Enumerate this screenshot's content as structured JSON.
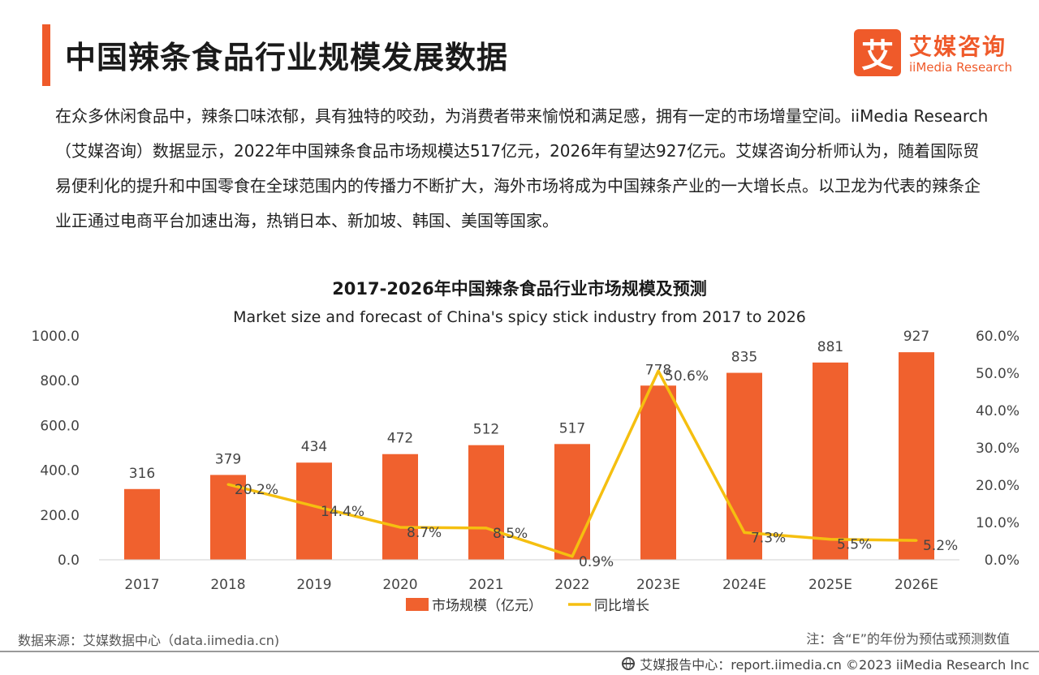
{
  "header": {
    "title": "中国辣条食品行业规模发展数据",
    "logo_mark": "艾",
    "logo_cn": "艾媒咨询",
    "logo_en": "iiMedia Research"
  },
  "intro": "在众多休闲食品中，辣条口味浓郁，具有独特的咬劲，为消费者带来愉悦和满足感，拥有一定的市场增量空间。iiMedia Research（艾媒咨询）数据显示，2022年中国辣条食品市场规模达517亿元，2026年有望达927亿元。艾媒咨询分析师认为，随着国际贸易便利化的提升和中国零食在全球范围内的传播力不断扩大，海外市场将成为中国辣条产业的一大增长点。以卫龙为代表的辣条企业正通过电商平台加速出海，热销日本、新加坡、韩国、美国等国家。",
  "chart_data": {
    "type": "bar",
    "title": "2017-2026年中国辣条食品行业市场规模及预测",
    "subtitle": "Market size and forecast of China's spicy stick industry from 2017 to 2026",
    "categories": [
      "2017",
      "2018",
      "2019",
      "2020",
      "2021",
      "2022",
      "2023E",
      "2024E",
      "2025E",
      "2026E"
    ],
    "series": [
      {
        "name": "市场规模（亿元）",
        "type": "bar",
        "axis": "left",
        "values": [
          316,
          379,
          434,
          472,
          512,
          517,
          778,
          835,
          881,
          927
        ],
        "labels": [
          "316",
          "379",
          "434",
          "472",
          "512",
          "517",
          "778",
          "835",
          "881",
          "927"
        ],
        "color": "#f0612e"
      },
      {
        "name": "同比增长",
        "type": "line",
        "axis": "right",
        "values": [
          null,
          20.2,
          14.4,
          8.7,
          8.5,
          0.9,
          50.6,
          7.3,
          5.5,
          5.2
        ],
        "labels": [
          "",
          "20.2%",
          "14.4%",
          "8.7%",
          "8.5%",
          "0.9%",
          "50.6%",
          "7.3%",
          "5.5%",
          "5.2%"
        ],
        "color": "#f5bf10"
      }
    ],
    "y_left": {
      "range": [
        0,
        1000
      ],
      "ticks": [
        0,
        200,
        400,
        600,
        800,
        1000
      ],
      "tick_labels": [
        "0.0",
        "200.0",
        "400.0",
        "600.0",
        "800.0",
        "1000.0"
      ]
    },
    "y_right": {
      "range": [
        0,
        60
      ],
      "ticks": [
        0,
        10,
        20,
        30,
        40,
        50,
        60
      ],
      "tick_labels": [
        "0.0%",
        "10.0%",
        "20.0%",
        "30.0%",
        "40.0%",
        "50.0%",
        "60.0%"
      ]
    },
    "grid": false,
    "legend_position": "bottom"
  },
  "footer": {
    "source": "数据来源：艾媒数据中心（data.iimedia.cn)",
    "note": "注：含“E”的年份为预估或预测数值",
    "copyright": "艾媒报告中心：report.iimedia.cn  ©2023  iiMedia Research  Inc"
  }
}
